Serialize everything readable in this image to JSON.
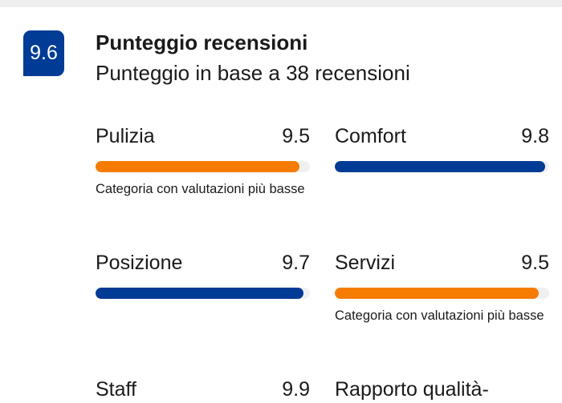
{
  "review_score": {
    "score_badge": "9.6",
    "title": "Punteggio recensioni",
    "subtitle": "Punteggio in base a 38 recensioni"
  },
  "colors": {
    "high": "#003b95",
    "low": "#f57c00",
    "track": "#f0f0f0"
  },
  "categories": [
    {
      "label": "Pulizia",
      "score": "9.5",
      "score_fraction": 0.95,
      "lowest": true,
      "note": "Categoria con valutazioni più basse"
    },
    {
      "label": "Comfort",
      "score": "9.8",
      "score_fraction": 0.98,
      "lowest": false,
      "note": ""
    },
    {
      "label": "Posizione",
      "score": "9.7",
      "score_fraction": 0.97,
      "lowest": false,
      "note": ""
    },
    {
      "label": "Servizi",
      "score": "9.5",
      "score_fraction": 0.95,
      "lowest": true,
      "note": "Categoria con valutazioni più basse"
    },
    {
      "label": "Staff",
      "score": "9.9",
      "score_fraction": 0.99,
      "lowest": false,
      "note": ""
    },
    {
      "label": "Rapporto qualità-",
      "score": "",
      "score_fraction": null,
      "lowest": false,
      "note": ""
    }
  ]
}
